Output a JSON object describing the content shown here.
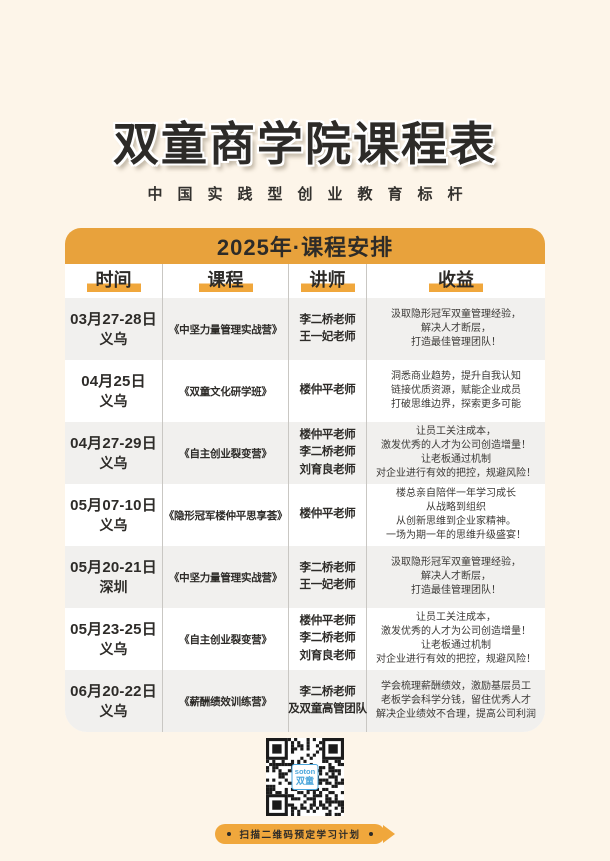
{
  "page": {
    "title": "双童商学院课程表",
    "subtitle": "中国实践型创业教育标杆"
  },
  "schedule": {
    "header": "2025年·课程安排",
    "columns": [
      "时间",
      "课程",
      "讲师",
      "收益"
    ],
    "rows": [
      {
        "date": "03月27-28日",
        "city": "义乌",
        "course": "《中坚力量管理实战营》",
        "lecturers": [
          "李二桥老师",
          "王一妃老师"
        ],
        "benefits": [
          "汲取隐形冠军双童管理经验，",
          "解决人才断层，",
          "打造最佳管理团队！"
        ]
      },
      {
        "date": "04月25日",
        "city": "义乌",
        "course": "《双童文化研学班》",
        "lecturers": [
          "楼仲平老师"
        ],
        "benefits": [
          "洞悉商业趋势，提升自我认知",
          "链接优质资源，赋能企业成员",
          "打破思维边界，探索更多可能"
        ]
      },
      {
        "date": "04月27-29日",
        "city": "义乌",
        "course": "《自主创业裂变营》",
        "lecturers": [
          "楼仲平老师",
          "李二桥老师",
          "刘育良老师"
        ],
        "benefits": [
          "让员工关注成本，",
          "激发优秀的人才为公司创造增量！",
          "让老板通过机制",
          "对企业进行有效的把控，规避风险！"
        ]
      },
      {
        "date": "05月07-10日",
        "city": "义乌",
        "course": "《隐形冠军楼仲平思享荟》",
        "lecturers": [
          "楼仲平老师"
        ],
        "benefits": [
          "楼总亲自陪伴一年学习成长",
          "从战略到组织",
          "从创新思维到企业家精神。",
          "一场为期一年的思维升级盛宴！"
        ]
      },
      {
        "date": "05月20-21日",
        "city": "深圳",
        "course": "《中坚力量管理实战营》",
        "lecturers": [
          "李二桥老师",
          "王一妃老师"
        ],
        "benefits": [
          "汲取隐形冠军双童管理经验，",
          "解决人才断层，",
          "打造最佳管理团队！"
        ]
      },
      {
        "date": "05月23-25日",
        "city": "义乌",
        "course": "《自主创业裂变营》",
        "lecturers": [
          "楼仲平老师",
          "李二桥老师",
          "刘育良老师"
        ],
        "benefits": [
          "让员工关注成本，",
          "激发优秀的人才为公司创造增量！",
          "让老板通过机制",
          "对企业进行有效的把控，规避风险！"
        ]
      },
      {
        "date": "06月20-22日",
        "city": "义乌",
        "course": "《薪酬绩效训练营》",
        "lecturers": [
          "李二桥老师",
          "及双童高管团队"
        ],
        "benefits": [
          "学会梳理薪酬绩效，激励基层员工",
          "老板学会科学分钱，留住优秀人才",
          "解决企业绩效不合理，提高公司利润"
        ]
      }
    ]
  },
  "qr": {
    "logo_top": "soton",
    "logo_bottom": "双童"
  },
  "footer": {
    "label": "扫描二维码预定学习计划"
  },
  "colors": {
    "background": "#FDF5E9",
    "accent_orange": "#E8A23C",
    "highlight_yellow": "#F0A73C",
    "row_stripe": "#F1F0EE",
    "text_dark": "#2D2B28",
    "qr_logo_blue": "#4BA6DB"
  }
}
